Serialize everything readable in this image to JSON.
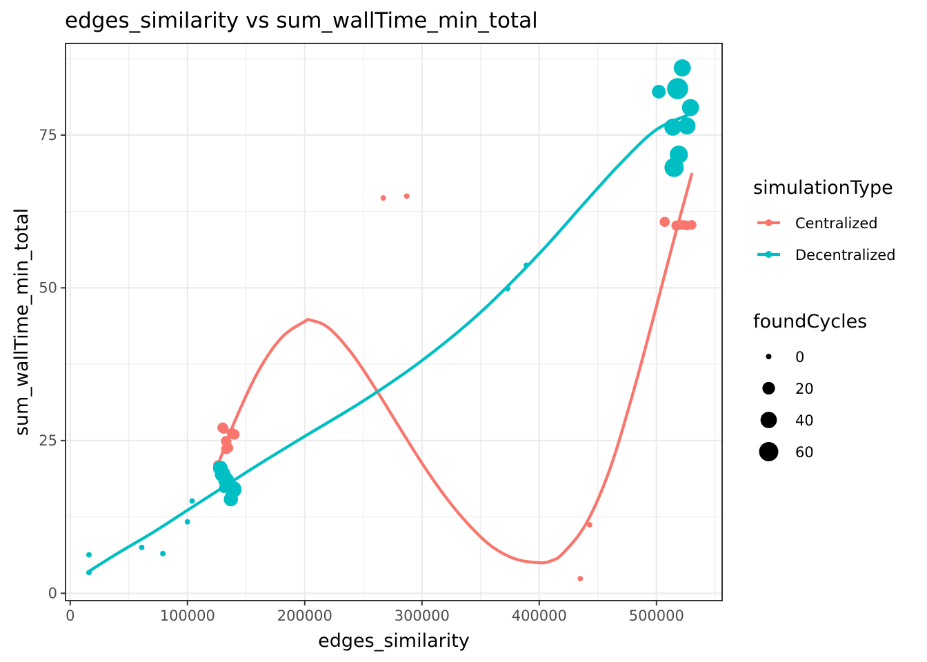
{
  "chart_data": {
    "type": "scatter",
    "title": "edges_similarity  vs  sum_wallTime_min_total",
    "xlabel": "edges_similarity",
    "ylabel": "sum_wallTime_min_total",
    "xlim": [
      -4000,
      556000
    ],
    "ylim": [
      -1.2,
      90
    ],
    "x_ticks": [
      0,
      100000,
      200000,
      300000,
      400000,
      500000
    ],
    "x_tick_labels": [
      "0",
      "100000",
      "200000",
      "300000",
      "400000",
      "500000"
    ],
    "y_ticks": [
      0,
      25,
      50,
      75
    ],
    "y_tick_labels": [
      "0",
      "25",
      "50",
      "75"
    ],
    "grid": true,
    "legend": {
      "placement": "right",
      "color_title": "simulationType",
      "size_title": "foundCycles",
      "color_entries": [
        {
          "label": "Centralized",
          "color": "#F8766D"
        },
        {
          "label": "Decentralized",
          "color": "#00BFC4"
        }
      ],
      "size_entries": [
        {
          "label": "0",
          "value": 0
        },
        {
          "label": "20",
          "value": 20
        },
        {
          "label": "40",
          "value": 40
        },
        {
          "label": "60",
          "value": 60
        }
      ]
    },
    "series": [
      {
        "name": "Centralized",
        "color": "#F8766D",
        "points": [
          {
            "x": 126000,
            "y": 21.0,
            "size": 4
          },
          {
            "x": 130000,
            "y": 27.1,
            "size": 6
          },
          {
            "x": 131000,
            "y": 26.9,
            "size": 4
          },
          {
            "x": 133000,
            "y": 24.9,
            "size": 6
          },
          {
            "x": 133000,
            "y": 23.6,
            "size": 5
          },
          {
            "x": 135000,
            "y": 23.8,
            "size": 4
          },
          {
            "x": 138000,
            "y": 26.2,
            "size": 6
          },
          {
            "x": 140000,
            "y": 26.0,
            "size": 6
          },
          {
            "x": 267000,
            "y": 64.7,
            "size": 0
          },
          {
            "x": 287000,
            "y": 65.0,
            "size": 0
          },
          {
            "x": 435000,
            "y": 2.4,
            "size": 0
          },
          {
            "x": 443000,
            "y": 11.2,
            "size": 0
          },
          {
            "x": 507000,
            "y": 60.8,
            "size": 5
          },
          {
            "x": 517000,
            "y": 60.2,
            "size": 5
          },
          {
            "x": 520000,
            "y": 60.3,
            "size": 4
          },
          {
            "x": 523000,
            "y": 60.3,
            "size": 4
          },
          {
            "x": 526000,
            "y": 60.2,
            "size": 4
          },
          {
            "x": 530000,
            "y": 60.3,
            "size": 4
          }
        ],
        "smooth": {
          "x": [
            126000,
            140000,
            160000,
            180000,
            200000,
            205000,
            220000,
            240000,
            260000,
            280000,
            300000,
            320000,
            340000,
            360000,
            380000,
            400000,
            410000,
            420000,
            440000,
            460000,
            480000,
            500000,
            515000,
            530000
          ],
          "y": [
            21.0,
            28.0,
            36.2,
            41.8,
            44.5,
            44.7,
            43.5,
            39.3,
            33.6,
            27.4,
            21.3,
            15.8,
            11.2,
            7.6,
            5.6,
            5.0,
            5.3,
            6.5,
            11.4,
            20.2,
            32.8,
            47.0,
            58.0,
            68.6
          ]
        }
      },
      {
        "name": "Decentralized",
        "color": "#00BFC4",
        "points": [
          {
            "x": 16000,
            "y": 6.3,
            "size": 0
          },
          {
            "x": 16000,
            "y": 3.4,
            "size": 0
          },
          {
            "x": 61000,
            "y": 7.5,
            "size": 0
          },
          {
            "x": 79000,
            "y": 6.5,
            "size": 0
          },
          {
            "x": 100000,
            "y": 11.7,
            "size": 0
          },
          {
            "x": 104000,
            "y": 15.1,
            "size": 0
          },
          {
            "x": 128000,
            "y": 20.5,
            "size": 20
          },
          {
            "x": 130000,
            "y": 19.5,
            "size": 25
          },
          {
            "x": 131000,
            "y": 17.2,
            "size": 4
          },
          {
            "x": 133000,
            "y": 18.5,
            "size": 25
          },
          {
            "x": 135000,
            "y": 18.0,
            "size": 18
          },
          {
            "x": 137000,
            "y": 15.4,
            "size": 18
          },
          {
            "x": 139000,
            "y": 17.0,
            "size": 30
          },
          {
            "x": 373000,
            "y": 49.9,
            "size": 0
          },
          {
            "x": 389000,
            "y": 53.7,
            "size": 0
          },
          {
            "x": 502000,
            "y": 82.1,
            "size": 16
          },
          {
            "x": 514000,
            "y": 76.3,
            "size": 32
          },
          {
            "x": 515000,
            "y": 69.7,
            "size": 45
          },
          {
            "x": 518000,
            "y": 82.6,
            "size": 58
          },
          {
            "x": 519000,
            "y": 71.8,
            "size": 38
          },
          {
            "x": 522000,
            "y": 86.0,
            "size": 32
          },
          {
            "x": 526000,
            "y": 76.5,
            "size": 32
          },
          {
            "x": 529000,
            "y": 79.5,
            "size": 32
          }
        ],
        "smooth": {
          "x": [
            16000,
            40000,
            70000,
            100000,
            130000,
            160000,
            200000,
            250000,
            300000,
            350000,
            400000,
            440000,
            470000,
            500000,
            530000
          ],
          "y": [
            3.6,
            6.5,
            9.9,
            13.6,
            17.3,
            21.0,
            25.7,
            31.5,
            38.1,
            46.0,
            55.6,
            64.2,
            70.5,
            75.9,
            78.5
          ]
        }
      }
    ]
  }
}
